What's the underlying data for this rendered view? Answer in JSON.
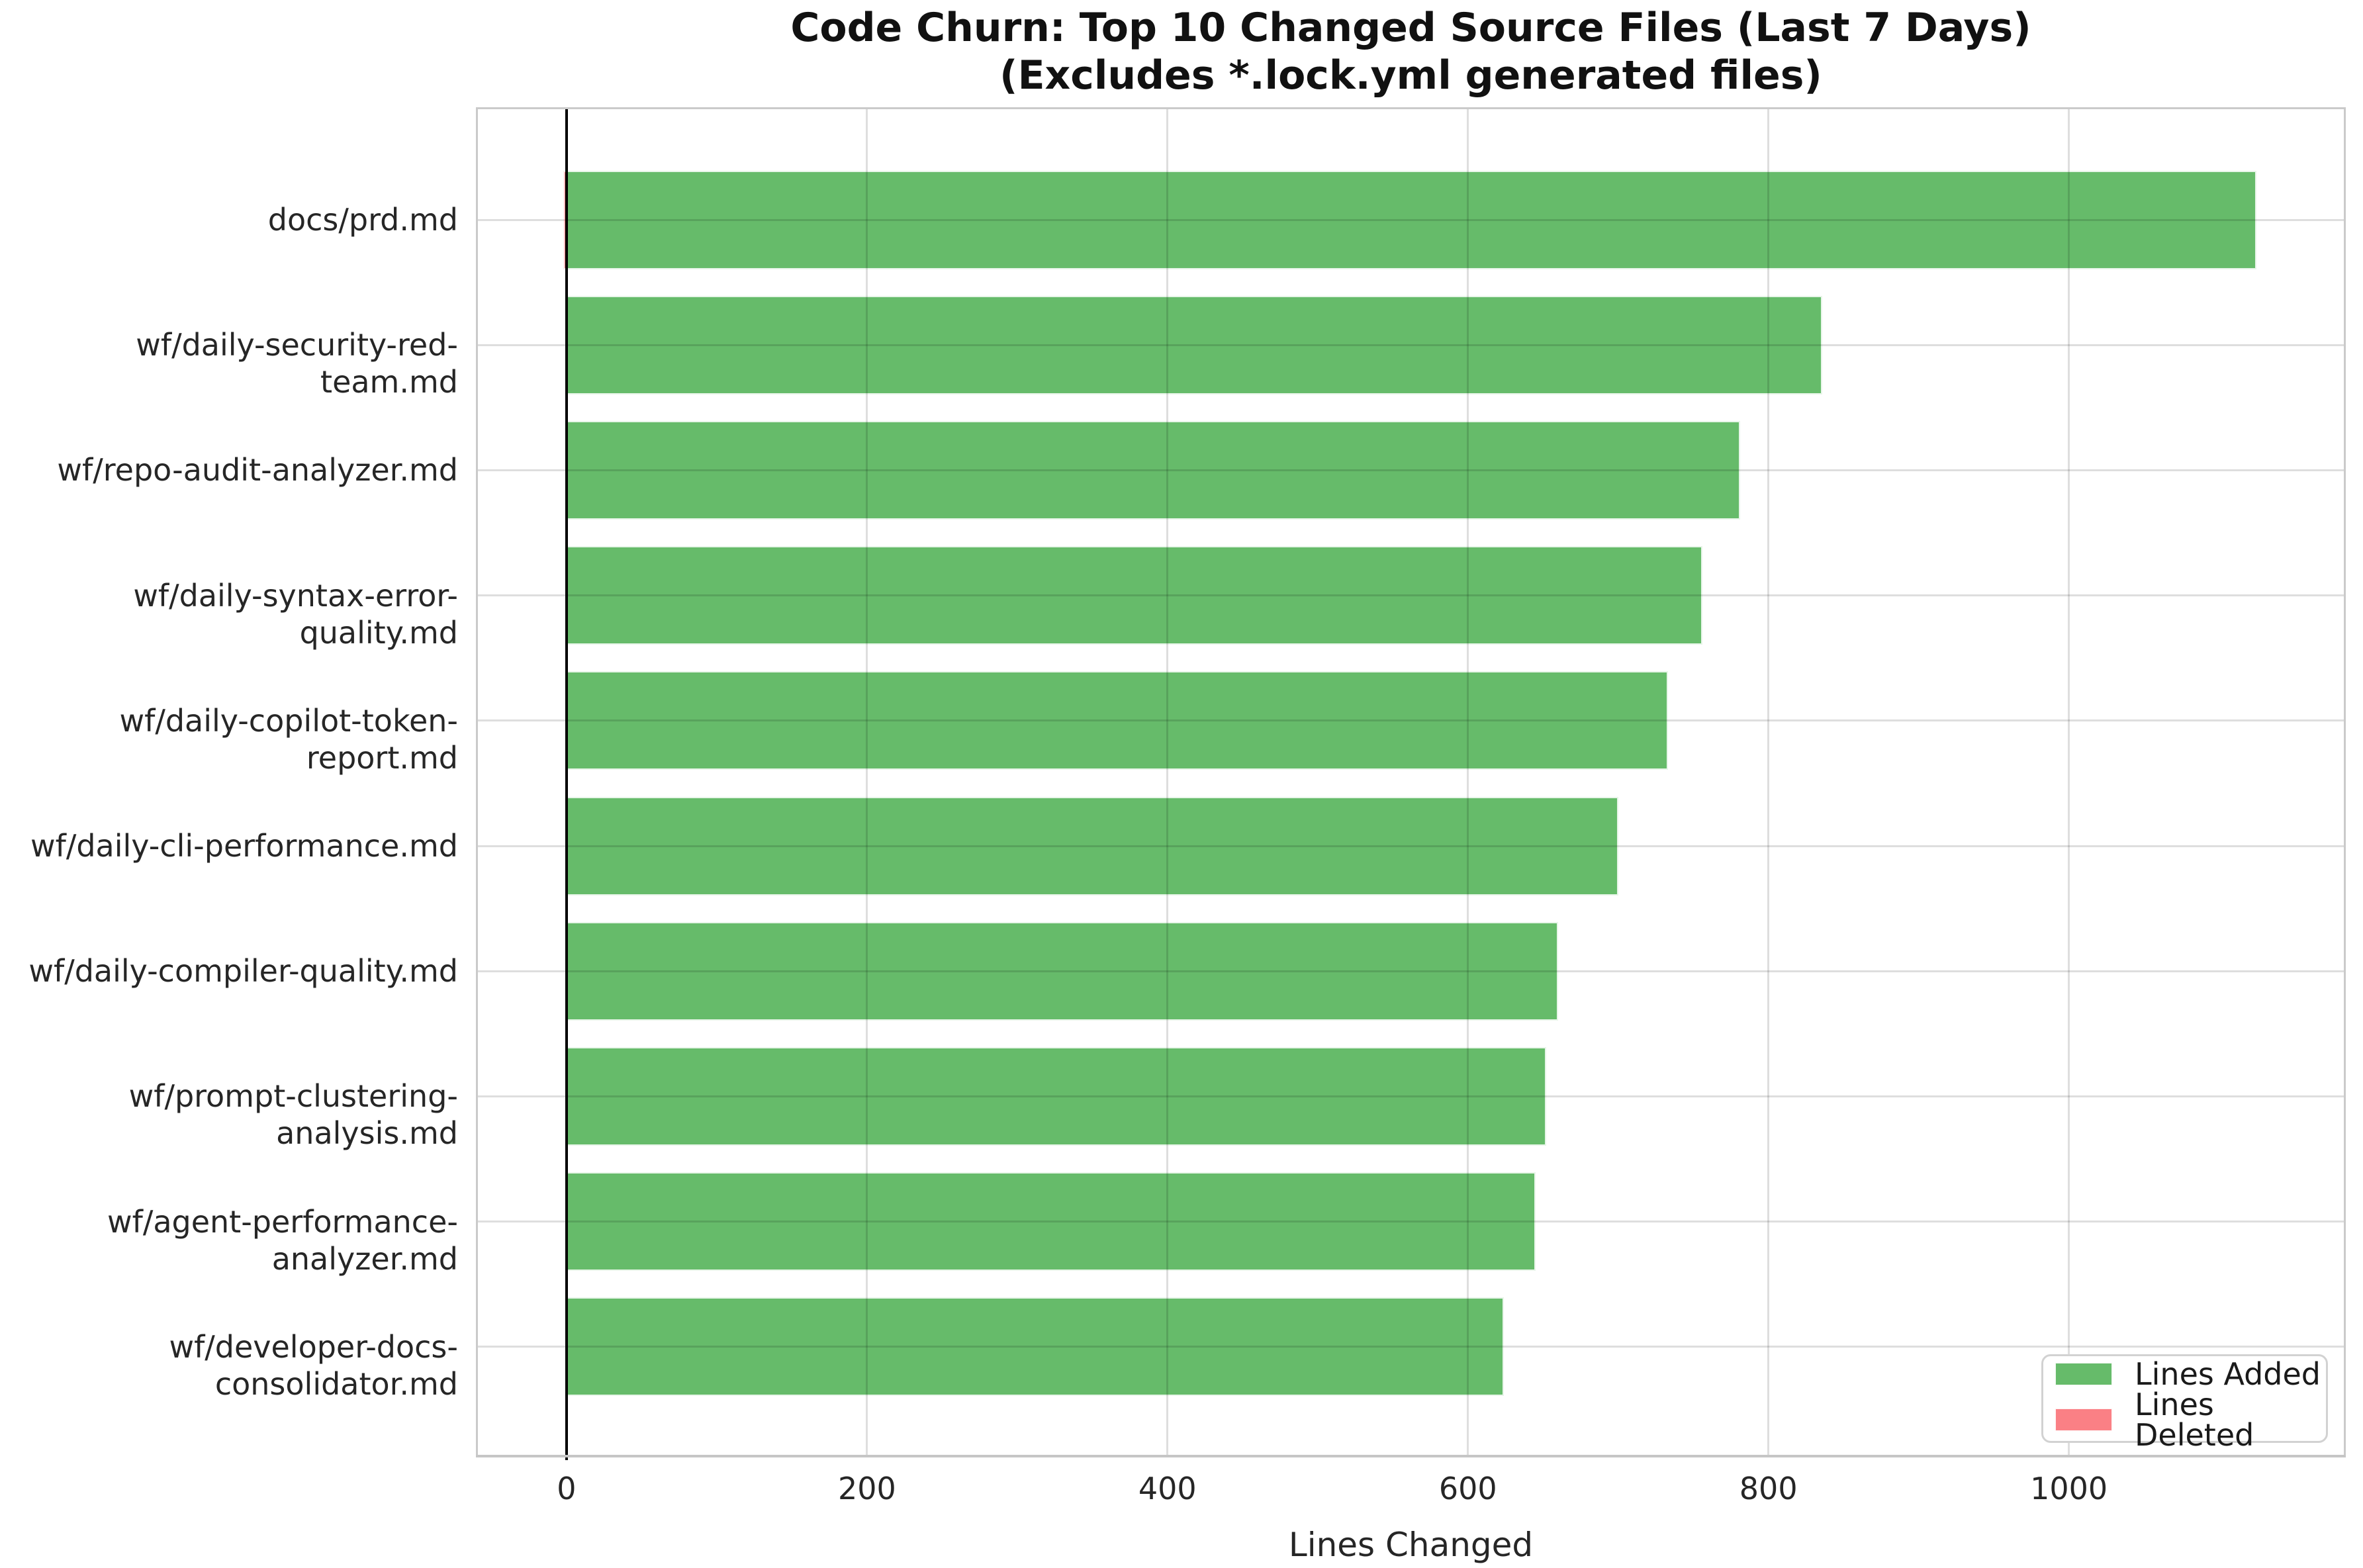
{
  "title": {
    "line1": "Code Churn: Top 10 Changed Source Files (Last 7 Days)",
    "line2": "(Excludes *.lock.yml generated files)"
  },
  "axes": {
    "xlabel": "Lines Changed"
  },
  "legend": {
    "items": [
      {
        "label": "Lines Added",
        "color": "#66bb6a"
      },
      {
        "label": "Lines Deleted",
        "color": "#fa8085"
      }
    ]
  },
  "chart_data": {
    "type": "bar",
    "orientation": "horizontal",
    "title": "Code Churn: Top 10 Changed Source Files (Last 7 Days) (Excludes *.lock.yml generated files)",
    "xlabel": "Lines Changed",
    "ylabel": "",
    "categories": [
      "docs/prd.md",
      "wf/daily-security-red-team.md",
      "wf/repo-audit-analyzer.md",
      "wf/daily-syntax-error-quality.md",
      "wf/daily-copilot-token-report.md",
      "wf/daily-cli-performance.md",
      "wf/daily-compiler-quality.md",
      "wf/prompt-clustering-analysis.md",
      "wf/agent-performance-analyzer.md",
      "wf/developer-docs-consolidator.md"
    ],
    "series": [
      {
        "name": "Lines Added",
        "color": "#66bb6a",
        "direction": "positive",
        "values": [
          1125,
          836,
          781,
          756,
          733,
          700,
          660,
          652,
          645,
          624
        ]
      },
      {
        "name": "Lines Deleted",
        "color": "#fa8085",
        "direction": "negative",
        "values": [
          2,
          0,
          0,
          0,
          0,
          0,
          0,
          0,
          0,
          0
        ]
      }
    ],
    "xticks": [
      0,
      200,
      400,
      600,
      800,
      1000
    ],
    "xlim": [
      -59,
      1183
    ],
    "grid": true,
    "gridcolor": "#dcdcdc",
    "zero_line": true,
    "zero_line_color": "#000000",
    "legend_position": "lower right"
  }
}
